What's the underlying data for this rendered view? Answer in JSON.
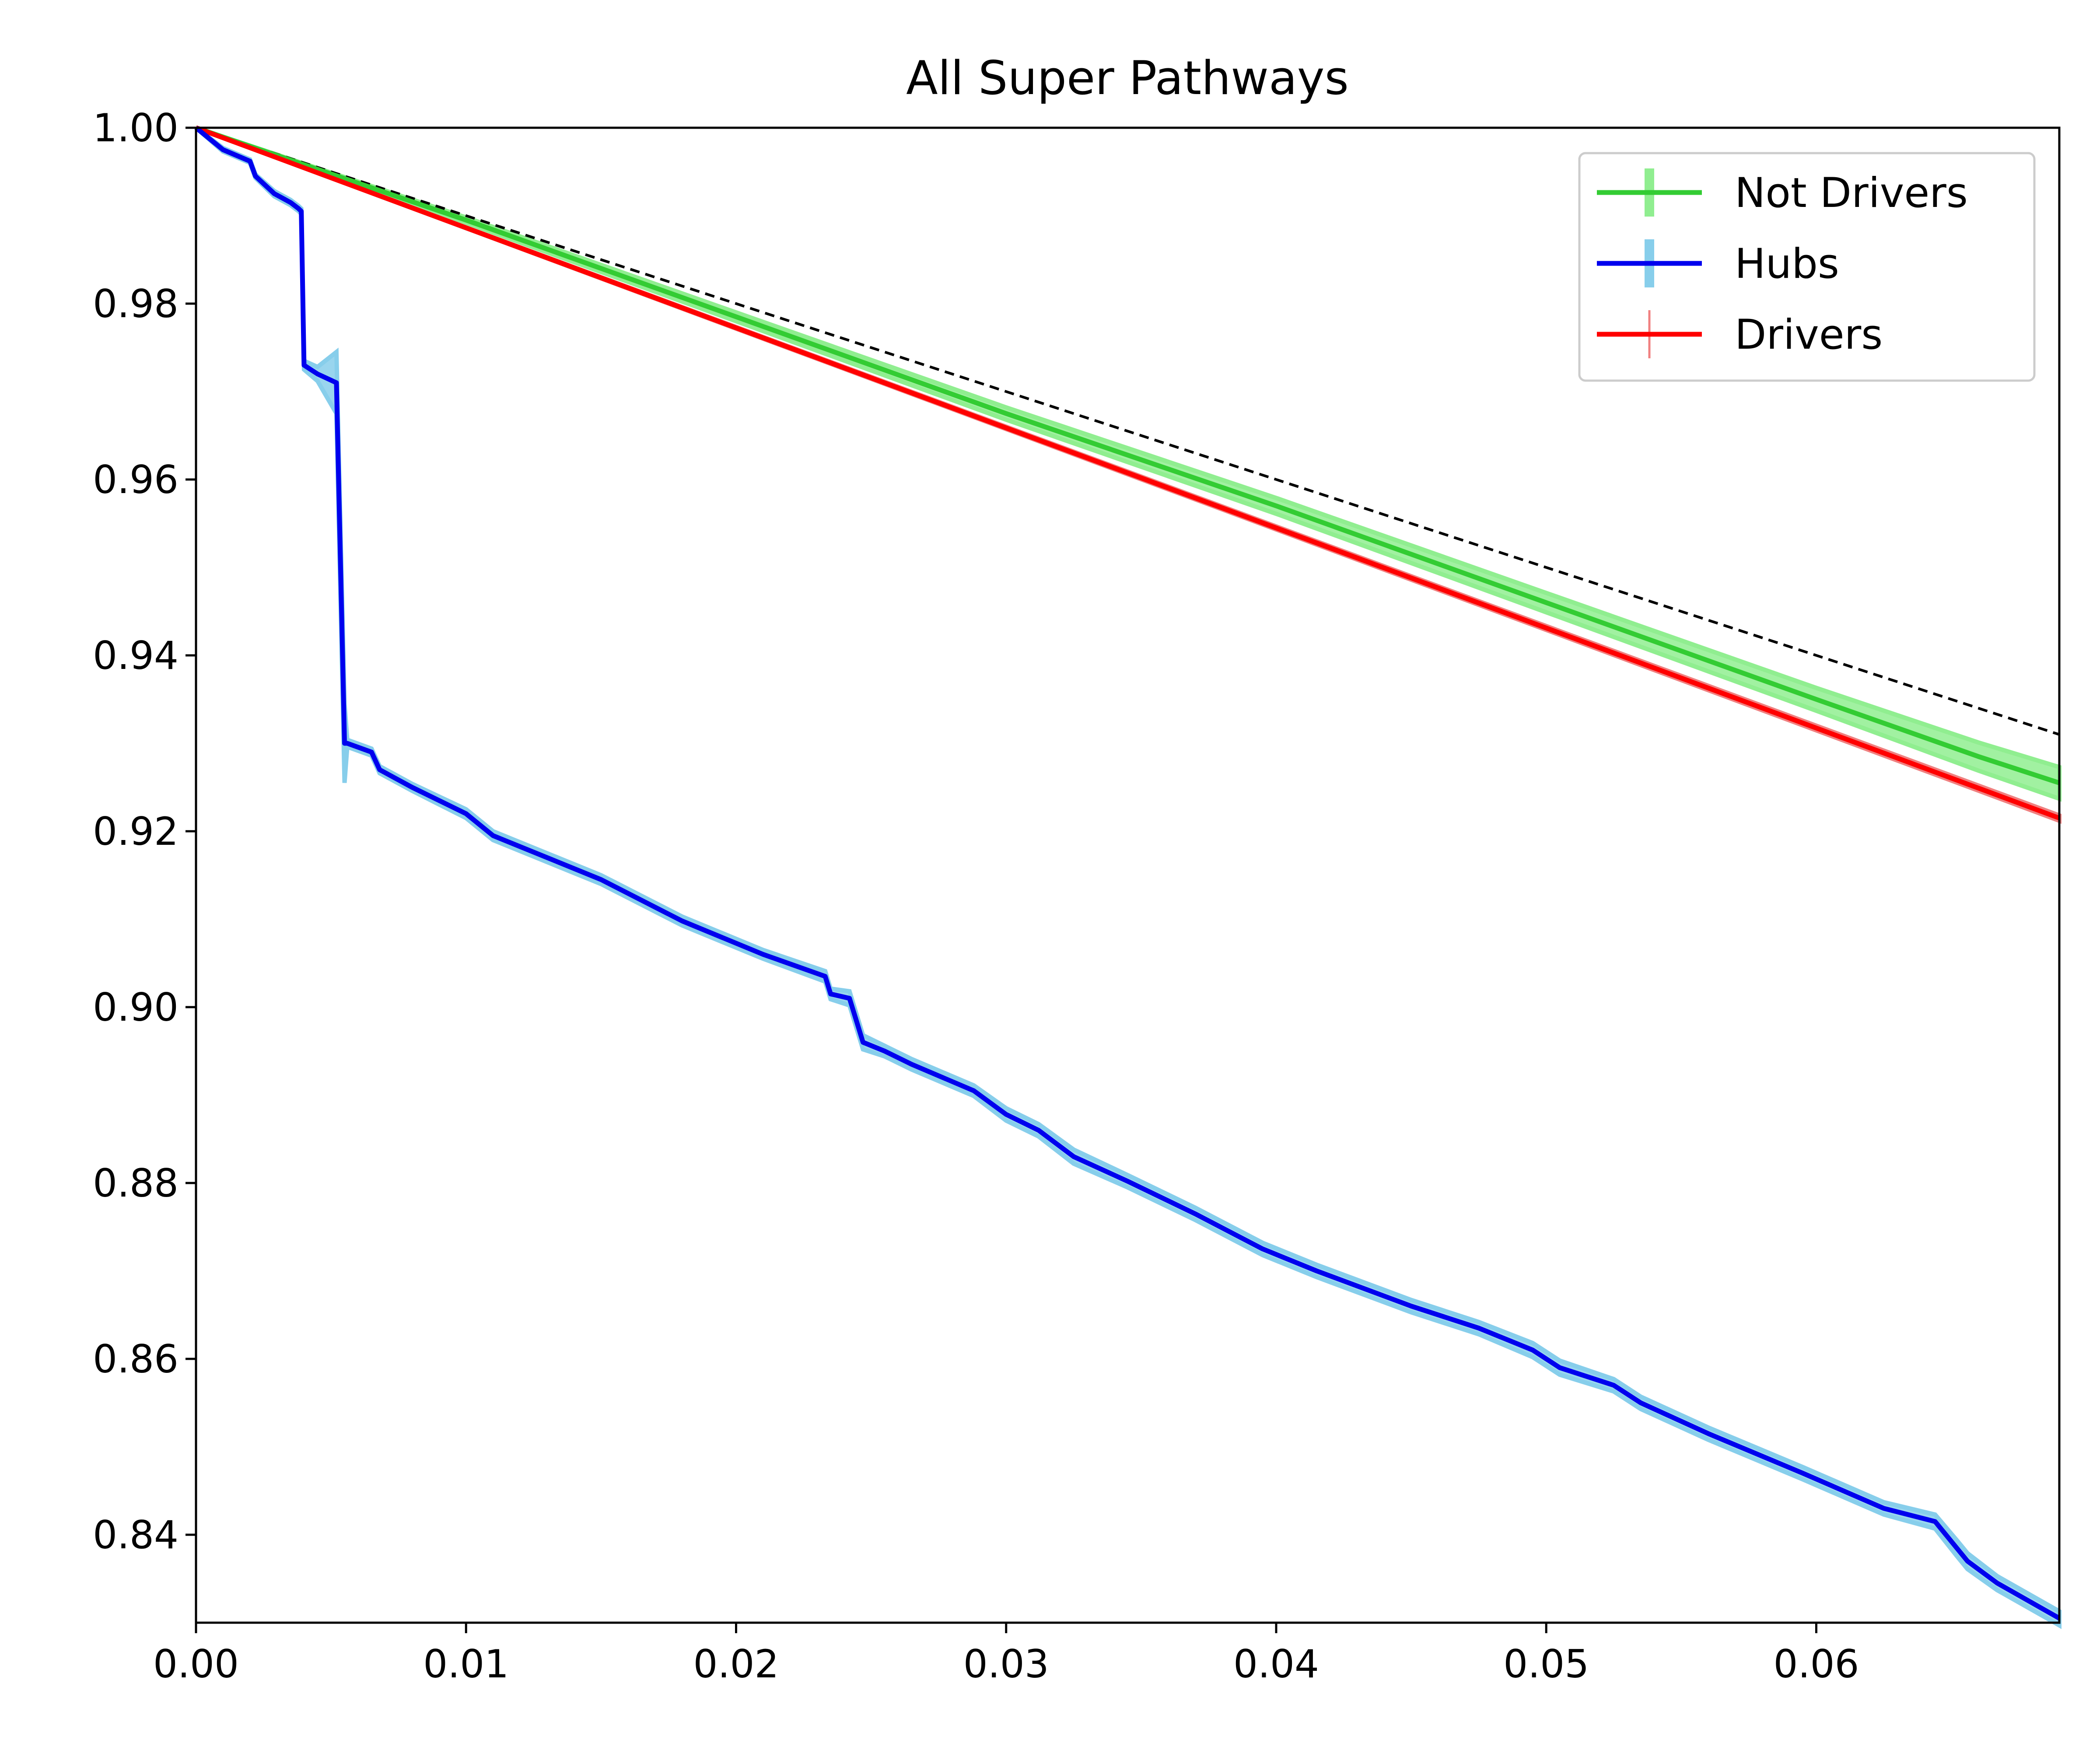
{
  "chart_data": {
    "type": "line",
    "title": "All Super Pathways",
    "xlabel": "",
    "ylabel": "",
    "xlim": [
      0.0,
      0.069
    ],
    "ylim": [
      0.83,
      1.0
    ],
    "x_ticks": [
      "0.00",
      "0.01",
      "0.02",
      "0.03",
      "0.04",
      "0.05",
      "0.06"
    ],
    "y_ticks": [
      "0.84",
      "0.86",
      "0.88",
      "0.90",
      "0.92",
      "0.94",
      "0.96",
      "0.98",
      "1.00"
    ],
    "grid": false,
    "legend_position": "top-right",
    "colors": {
      "not_drivers": "#33cc33",
      "not_drivers_band": "#90ee90",
      "hubs": "#0000ee",
      "hubs_band": "#87ceeb",
      "drivers": "#ff0000",
      "drivers_band": "#f08080",
      "reference": "#000000"
    },
    "reference_line": {
      "style": "dashed",
      "x": [
        0.0,
        0.069
      ],
      "y": [
        1.0,
        0.931
      ]
    },
    "series": [
      {
        "name": "Not Drivers",
        "key": "not_drivers",
        "x": [
          0.0,
          0.01,
          0.02,
          0.03,
          0.04,
          0.05,
          0.06,
          0.066,
          0.069
        ],
        "y": [
          1.0,
          0.9895,
          0.9785,
          0.9675,
          0.957,
          0.946,
          0.935,
          0.9285,
          0.9255
        ],
        "err": [
          0.0,
          0.0003,
          0.0005,
          0.0007,
          0.0009,
          0.0011,
          0.0013,
          0.0016,
          0.0018
        ]
      },
      {
        "name": "Hubs",
        "key": "hubs",
        "x": [
          0.0,
          0.001,
          0.002,
          0.0022,
          0.0029,
          0.0035,
          0.0038,
          0.0039,
          0.004,
          0.0045,
          0.0052,
          0.0055,
          0.0056,
          0.0065,
          0.0068,
          0.008,
          0.01,
          0.011,
          0.015,
          0.018,
          0.021,
          0.0233,
          0.0235,
          0.0242,
          0.0247,
          0.0255,
          0.0265,
          0.0288,
          0.03,
          0.0312,
          0.0325,
          0.0345,
          0.037,
          0.0395,
          0.0415,
          0.045,
          0.0475,
          0.0495,
          0.0505,
          0.0525,
          0.0535,
          0.056,
          0.0595,
          0.0625,
          0.0644,
          0.0652,
          0.0656,
          0.0667,
          0.069
        ],
        "y": [
          1.0,
          0.9975,
          0.9962,
          0.9945,
          0.9925,
          0.9915,
          0.9908,
          0.9905,
          0.973,
          0.972,
          0.971,
          0.93,
          0.93,
          0.929,
          0.927,
          0.925,
          0.922,
          0.9195,
          0.9145,
          0.9098,
          0.906,
          0.9035,
          0.9015,
          0.901,
          0.896,
          0.895,
          0.8935,
          0.8905,
          0.8878,
          0.886,
          0.883,
          0.8802,
          0.8765,
          0.8725,
          0.87,
          0.866,
          0.8635,
          0.861,
          0.859,
          0.857,
          0.855,
          0.8515,
          0.847,
          0.843,
          0.8415,
          0.8385,
          0.837,
          0.8345,
          0.8305
        ],
        "err": [
          0.0,
          0.0002,
          0.0002,
          0.0002,
          0.0003,
          0.0003,
          0.0003,
          0.0003,
          0.0005,
          0.0008,
          0.0035,
          0.0045,
          0.0004,
          0.0004,
          0.0004,
          0.0004,
          0.0005,
          0.0005,
          0.0005,
          0.0005,
          0.0005,
          0.0006,
          0.0006,
          0.0008,
          0.0008,
          0.0006,
          0.0006,
          0.0006,
          0.0007,
          0.0007,
          0.0008,
          0.0007,
          0.0007,
          0.0007,
          0.0007,
          0.0007,
          0.0007,
          0.0008,
          0.0008,
          0.0007,
          0.0007,
          0.0007,
          0.0007,
          0.0007,
          0.0008,
          0.0009,
          0.0009,
          0.0008,
          0.0008
        ]
      },
      {
        "name": "Drivers",
        "key": "drivers",
        "x": [
          0.0,
          0.069
        ],
        "y": [
          1.0,
          0.9215
        ],
        "err": [
          0.0,
          0.0003
        ]
      }
    ]
  }
}
